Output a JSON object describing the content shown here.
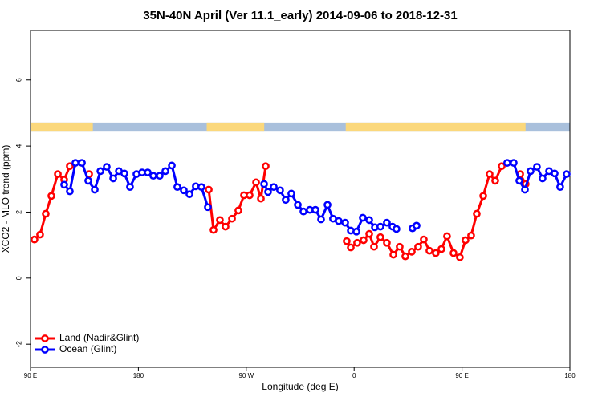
{
  "chart_data": {
    "type": "line",
    "title": "35N-40N April (Ver 11.1_early)   2014-09-06 to 2018-12-31",
    "xlabel": "Longitude (deg E)",
    "ylabel": "XCO2 - MLO trend (ppm)",
    "xlim": [
      90,
      540
    ],
    "ylim": [
      -2.7,
      7.5
    ],
    "xticks": [
      {
        "value": 90,
        "label": "90 E"
      },
      {
        "value": 180,
        "label": "180"
      },
      {
        "value": 270,
        "label": "90 W"
      },
      {
        "value": 360,
        "label": "0"
      },
      {
        "value": 450,
        "label": "90 E"
      },
      {
        "value": 540,
        "label": "180"
      }
    ],
    "yticks": [
      -2,
      0,
      2,
      4,
      6
    ],
    "legend": "bottom-left",
    "mask": {
      "ylim": [
        4.46,
        4.71
      ],
      "land_color": "#fbd87c",
      "ocean_color": "#a9c0dc",
      "land": [
        [
          90,
          142
        ],
        [
          237,
          285
        ],
        [
          353,
          503
        ]
      ]
    },
    "series": [
      {
        "name": "Land (Nadir&Glint)",
        "color": "#ff0000",
        "x": [
          93.3,
          98.0,
          102.7,
          107.4,
          112.8,
          118.1,
          122.8,
          130,
          138.9,
          190,
          238.7,
          242.7,
          248.0,
          252.7,
          258.1,
          263.4,
          268.1,
          272.8,
          278.2,
          282.2,
          286.2,
          320,
          353.8,
          357.2,
          362.5,
          367.9,
          372.6,
          376.6,
          381.9,
          387.3,
          392.7,
          398.0,
          402.7,
          408.1,
          413.4,
          418.1,
          422.8,
          428.1,
          432.8,
          437.5,
          442.9,
          448.2,
          452.9,
          457.6,
          462.3,
          467.7,
          473.0,
          477.7,
          483.1,
          490,
          498.5,
          503.1
        ],
        "values": [
          1.17,
          1.32,
          1.95,
          2.49,
          3.15,
          2.98,
          3.39,
          null,
          3.15,
          null,
          2.68,
          1.46,
          1.76,
          1.56,
          1.8,
          2.05,
          2.51,
          2.51,
          2.9,
          2.41,
          3.39,
          null,
          1.12,
          0.93,
          1.07,
          1.15,
          1.34,
          0.95,
          1.24,
          1.07,
          0.71,
          0.95,
          0.66,
          0.8,
          0.95,
          1.17,
          0.83,
          0.76,
          0.88,
          1.27,
          0.76,
          0.63,
          1.15,
          1.29,
          1.95,
          2.49,
          3.15,
          2.95,
          3.39,
          null,
          3.15,
          2.85
        ]
      },
      {
        "name": "Ocean (Glint)",
        "color": "#0000ff",
        "x": [
          118.1,
          122.8,
          127.5,
          132.9,
          138.2,
          143.6,
          148.3,
          153.6,
          159.0,
          163.7,
          168.3,
          173.0,
          178.4,
          183.1,
          187.8,
          192.4,
          197.8,
          202.5,
          207.9,
          212.5,
          217.9,
          222.6,
          227.9,
          232.6,
          238.0,
          260,
          284.9,
          288.2,
          292.9,
          298.2,
          302.9,
          307.6,
          313.0,
          317.7,
          323.0,
          327.7,
          332.4,
          337.8,
          342.4,
          347.1,
          352.5,
          357.2,
          361.9,
          367.2,
          372.6,
          377.3,
          381.9,
          387.3,
          392.0,
          395.3,
          402,
          408.7,
          412.1,
          450,
          487.7,
          493.1,
          497.8,
          502.5,
          507.2,
          512.5,
          517.2,
          522.6,
          527.3,
          531.9,
          537.3
        ],
        "values": [
          2.83,
          2.63,
          3.49,
          3.49,
          2.95,
          2.68,
          3.24,
          3.37,
          3.02,
          3.24,
          3.17,
          2.76,
          3.15,
          3.2,
          3.2,
          3.1,
          3.1,
          3.24,
          3.41,
          2.76,
          2.66,
          2.54,
          2.78,
          2.76,
          2.15,
          null,
          2.85,
          2.61,
          2.76,
          2.66,
          2.37,
          2.56,
          2.22,
          2.02,
          2.07,
          2.07,
          1.78,
          2.22,
          1.8,
          1.73,
          1.68,
          1.44,
          1.41,
          1.83,
          1.76,
          1.54,
          1.56,
          1.68,
          1.56,
          1.49,
          null,
          1.51,
          1.59,
          null,
          3.49,
          3.49,
          2.95,
          2.68,
          3.24,
          3.37,
          3.02,
          3.24,
          3.17,
          2.76,
          3.15
        ]
      }
    ]
  }
}
